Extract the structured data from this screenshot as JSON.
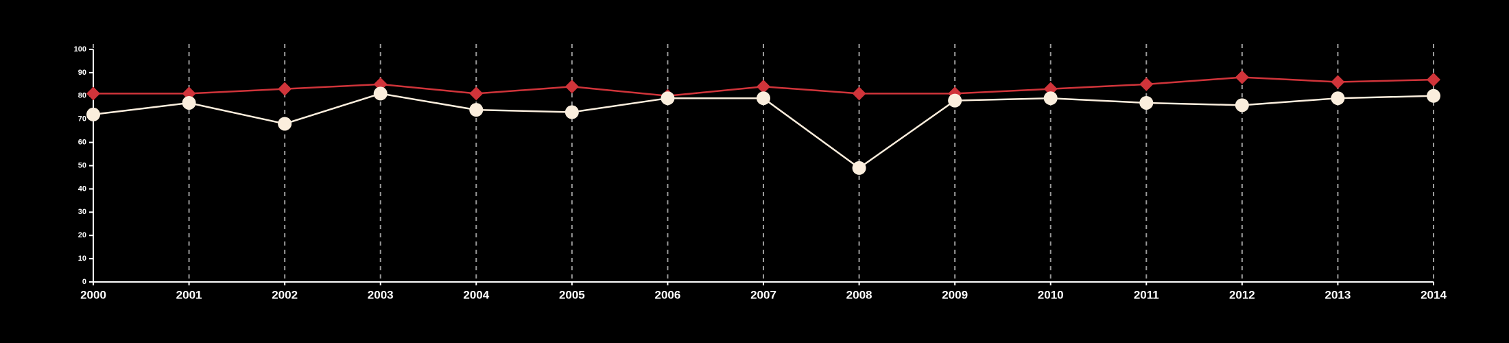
{
  "chart_data": {
    "type": "line",
    "x": [
      2000,
      2001,
      2002,
      2003,
      2004,
      2005,
      2006,
      2007,
      2008,
      2009,
      2010,
      2011,
      2012,
      2013,
      2014
    ],
    "xlim": [
      2000,
      2014
    ],
    "xticks": [
      2000,
      2001,
      2002,
      2003,
      2004,
      2005,
      2006,
      2007,
      2008,
      2009,
      2010,
      2011,
      2012,
      2013,
      2014
    ],
    "ylim": [
      0,
      100
    ],
    "yticks": [
      0,
      10,
      20,
      30,
      40,
      50,
      60,
      70,
      80,
      90,
      100
    ],
    "grid": "x",
    "series": [
      {
        "color": "#d0343a",
        "marker": "diamond",
        "values": [
          81,
          81,
          83,
          85,
          81,
          84,
          80,
          84,
          81,
          81,
          83,
          85,
          88,
          86,
          87
        ]
      },
      {
        "color": "#fbeedd",
        "marker": "circle",
        "values": [
          72,
          77,
          68,
          81,
          74,
          73,
          79,
          79,
          49,
          78,
          79,
          77,
          76,
          79,
          80
        ]
      }
    ]
  }
}
